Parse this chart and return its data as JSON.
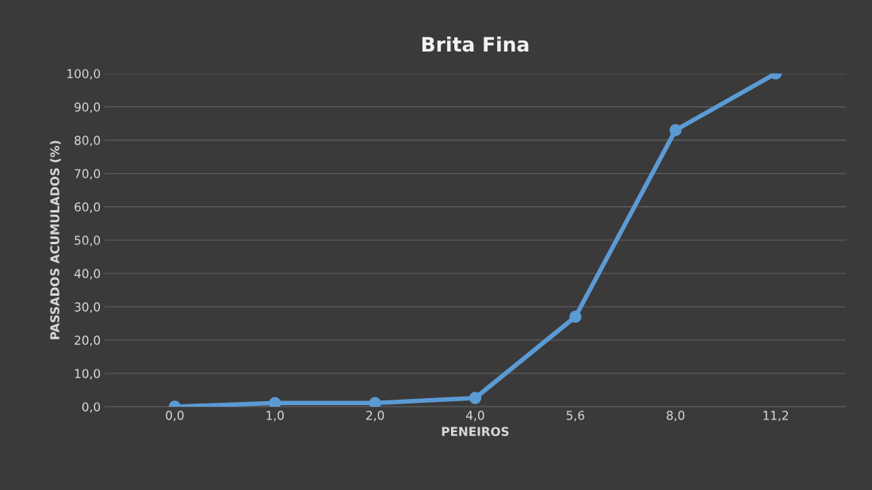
{
  "chart_data": {
    "type": "line",
    "title": "Brita Fina",
    "xlabel": "PENEIROS",
    "ylabel": "PASSADOS ACUMULADOS (%)",
    "categories": [
      "0,0",
      "1,0",
      "2,0",
      "4,0",
      "5,6",
      "8,0",
      "11,2"
    ],
    "series": [
      {
        "color": "#5b9bd5",
        "values": [
          0.0,
          1.1,
          1.1,
          2.6,
          27.0,
          83.0,
          100.0
        ]
      }
    ],
    "ylim": [
      0,
      100
    ],
    "yticks": [
      {
        "value": 0,
        "label": "0,0"
      },
      {
        "value": 10,
        "label": "10,0"
      },
      {
        "value": 20,
        "label": "20,0"
      },
      {
        "value": 30,
        "label": "30,0"
      },
      {
        "value": 40,
        "label": "40,0"
      },
      {
        "value": 50,
        "label": "50,0"
      },
      {
        "value": 60,
        "label": "60,0"
      },
      {
        "value": 70,
        "label": "70,0"
      },
      {
        "value": 80,
        "label": "80,0"
      },
      {
        "value": 90,
        "label": "90,0"
      },
      {
        "value": 100,
        "label": "100,0"
      }
    ],
    "grid": "y",
    "marker": "circle",
    "line_style": "solid",
    "legend": false
  }
}
